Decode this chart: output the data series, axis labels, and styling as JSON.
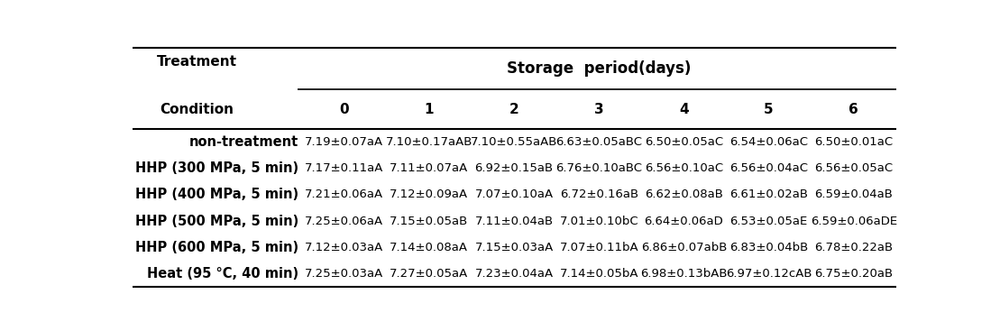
{
  "col_header_line1": "Storage  period(days)",
  "col_header_line2": [
    "0",
    "1",
    "2",
    "3",
    "4",
    "5",
    "6"
  ],
  "row_header_line1": "Treatment",
  "row_header_line2": "Condition",
  "treatments": [
    "non-treatment",
    "HHP (300 MPa, 5 min)",
    "HHP (400 MPa, 5 min)",
    "HHP (500 MPa, 5 min)",
    "HHP (600 MPa, 5 min)",
    "Heat (95 °C, 40 min)"
  ],
  "data": [
    [
      "7.19±0.07aA",
      "7.10±0.17aAB",
      "7.10±0.55aAB",
      "6.63±0.05aBC",
      "6.50±0.05aC",
      "6.54±0.06aC",
      "6.50±0.01aC"
    ],
    [
      "7.17±0.11aA",
      "7.11±0.07aA",
      "6.92±0.15aB",
      "6.76±0.10aBC",
      "6.56±0.10aC",
      "6.56±0.04aC",
      "6.56±0.05aC"
    ],
    [
      "7.21±0.06aA",
      "7.12±0.09aA",
      "7.07±0.10aA",
      "6.72±0.16aB",
      "6.62±0.08aB",
      "6.61±0.02aB",
      "6.59±0.04aB"
    ],
    [
      "7.25±0.06aA",
      "7.15±0.05aB",
      "7.11±0.04aB",
      "7.01±0.10bC",
      "6.64±0.06aD",
      "6.53±0.05aE",
      "6.59±0.06aDE"
    ],
    [
      "7.12±0.03aA",
      "7.14±0.08aA",
      "7.15±0.03aA",
      "7.07±0.11bA",
      "6.86±0.07abB",
      "6.83±0.04bB",
      "6.78±0.22aB"
    ],
    [
      "7.25±0.03aA",
      "7.27±0.05aA",
      "7.23±0.04aA",
      "7.14±0.05bA",
      "6.98±0.13bAB",
      "6.97±0.12cAB",
      "6.75±0.20aB"
    ]
  ],
  "fig_width": 11.09,
  "fig_height": 3.67,
  "dpi": 100,
  "background_color": "#ffffff",
  "text_color": "#000000",
  "header_fontsize": 11,
  "cell_fontsize": 9.5,
  "row_label_fontsize": 10.5,
  "day_fontsize": 11
}
